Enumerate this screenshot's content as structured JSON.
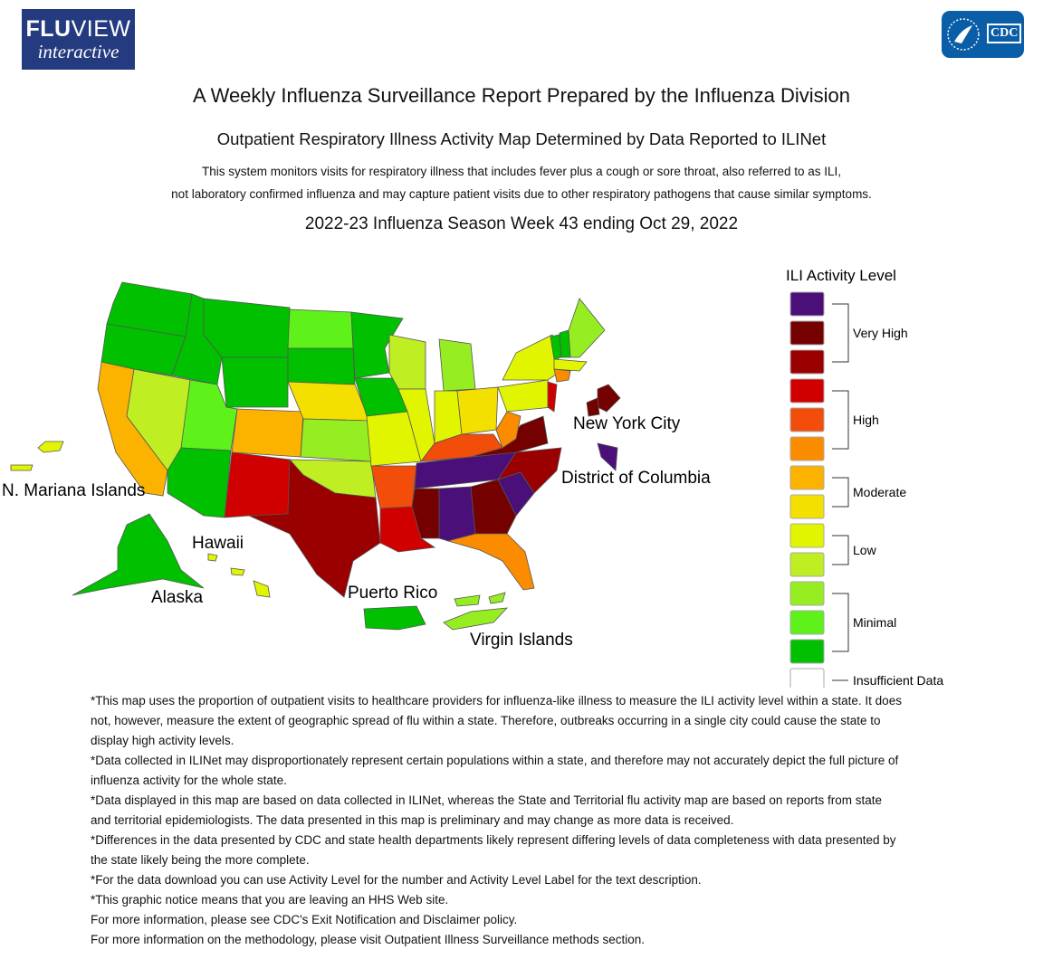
{
  "header": {
    "brand_bold": "FLU",
    "brand_light": "VIEW",
    "tagline": "interactive",
    "agency": "CDC",
    "title": "A Weekly Influenza Surveillance Report Prepared by the Influenza Division",
    "subtitle": "Outpatient Respiratory Illness Activity Map Determined by Data Reported to ILINet",
    "description": [
      "This system monitors visits for respiratory illness that includes fever plus a cough or sore throat, also referred to as ILI,",
      "not laboratory confirmed influenza and may capture patient visits due to other respiratory pathogens that cause similar symptoms."
    ],
    "season": "2022-23 Influenza Season Week 43 ending Oct 29, 2022"
  },
  "map": {
    "labels": {
      "mariana": "N. Mariana Islands",
      "hawaii": "Hawaii",
      "alaska": "Alaska",
      "puerto_rico": "Puerto Rico",
      "virgin_islands": "Virgin Islands",
      "nyc": "New York City",
      "dc": "District of Columbia"
    }
  },
  "legend": {
    "title": "ILI Activity Level",
    "groups": [
      {
        "label": "Very High",
        "colors": [
          "#4a0f78",
          "#740000",
          "#9a0000"
        ]
      },
      {
        "label": "High",
        "colors": [
          "#d10000",
          "#f24d0a",
          "#fb8c00"
        ]
      },
      {
        "label": "Moderate",
        "colors": [
          "#fcb300",
          "#f3df00"
        ]
      },
      {
        "label": "Low",
        "colors": [
          "#e2f500",
          "#bfee22"
        ]
      },
      {
        "label": "Minimal",
        "colors": [
          "#96ee22",
          "#5ef21a",
          "#00c000"
        ]
      },
      {
        "label": "Insufficient Data",
        "colors": [
          "#ffffff"
        ]
      }
    ]
  },
  "notes": [
    "*This map uses the proportion of outpatient visits to healthcare providers for influenza-like illness to measure the ILI activity level within a state. It does not, however, measure the extent of geographic spread of flu within a state. Therefore, outbreaks occurring in a single city could cause the state to display high activity levels.",
    "*Data collected in ILINet may disproportionately represent certain populations within a state, and therefore may not accurately depict the full picture of influenza activity for the whole state.",
    "*Data displayed in this map are based on data collected in ILINet, whereas the State and Territorial flu activity map are based on reports from state and territorial epidemiologists. The data presented in this map is preliminary and may change as more data is received.",
    "*Differences in the data presented by CDC and state health departments likely represent differing levels of data completeness with data presented by the state likely being the more complete.",
    "*For the data download you can use Activity Level for the number and Activity Level Label for the text description.",
    "*This graphic notice means that you are leaving an HHS Web site.",
    "For more information, please see CDC's Exit Notification and Disclaimer policy.",
    "For more information on the methodology, please visit Outpatient Illness Surveillance methods section."
  ]
}
